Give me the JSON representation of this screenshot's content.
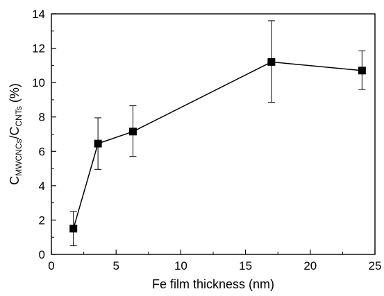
{
  "chart_data": {
    "type": "scatter",
    "xlabel": "Fe film thickness (nm)",
    "ylabel": {
      "prefix": "C",
      "sub1": "MWCNCs",
      "sep": "/C",
      "sub2": "CNTs",
      "suffix": " (%)"
    },
    "xlim": [
      0,
      25
    ],
    "ylim": [
      0,
      14
    ],
    "xticks": [
      "0",
      "5",
      "10",
      "15",
      "20",
      "25"
    ],
    "yticks": [
      "0",
      "2",
      "4",
      "6",
      "8",
      "10",
      "12",
      "14"
    ],
    "grid": false,
    "legend": "none",
    "series": [
      {
        "marker": "square",
        "line": true,
        "color": "#000000",
        "x": [
          1.7,
          3.6,
          6.3,
          17.0,
          24.0
        ],
        "y": [
          1.5,
          6.45,
          7.15,
          11.2,
          10.7
        ],
        "err_low": [
          1.0,
          1.5,
          1.45,
          2.35,
          1.1
        ],
        "err_high": [
          1.0,
          1.5,
          1.5,
          2.4,
          1.15
        ]
      }
    ]
  }
}
